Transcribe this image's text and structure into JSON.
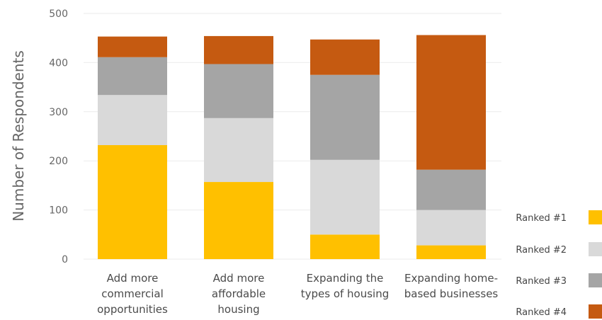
{
  "colors": {
    "ranked_1": "#FFC000",
    "ranked_2": "#D9D9D9",
    "ranked_3": "#A5A5A5",
    "ranked_4": "#C55A11",
    "grid": "#EBEBEB"
  },
  "chart_data": {
    "type": "bar",
    "stacked": true,
    "title": "",
    "xlabel": "",
    "ylabel": "Number of  Respondents",
    "ylim": [
      0,
      500
    ],
    "yticks": [
      0,
      100,
      200,
      300,
      400,
      500
    ],
    "grid": true,
    "legend_position": "right",
    "categories": [
      [
        "Add more",
        "commercial",
        "opportunities"
      ],
      [
        "Add more",
        "affordable",
        "housing"
      ],
      [
        "Expanding the",
        "types of housing"
      ],
      [
        "Expanding home-",
        "based businesses"
      ]
    ],
    "series": [
      {
        "name": "Ranked #1",
        "values": [
          232,
          157,
          50,
          28
        ]
      },
      {
        "name": "Ranked #2",
        "values": [
          102,
          130,
          152,
          72
        ]
      },
      {
        "name": "Ranked #3",
        "values": [
          77,
          110,
          173,
          82
        ]
      },
      {
        "name": "Ranked #4",
        "values": [
          42,
          57,
          72,
          274
        ]
      }
    ]
  }
}
